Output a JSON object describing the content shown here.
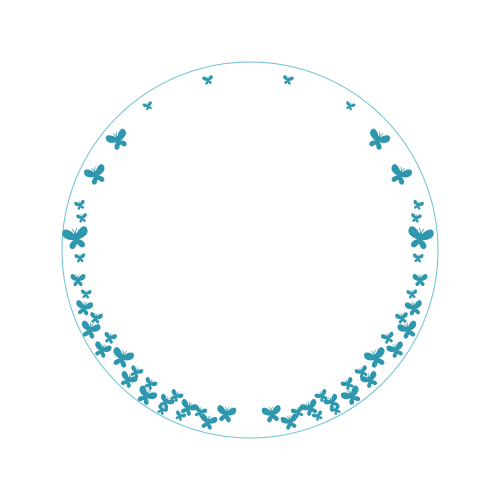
{
  "frame": {
    "ring_color": "#6cc0d3",
    "butterfly_color": "#2f97ad",
    "background_color": "#ffffff",
    "ring_icon": "circle-ring-icon",
    "motif_icon": "butterfly-icon"
  }
}
